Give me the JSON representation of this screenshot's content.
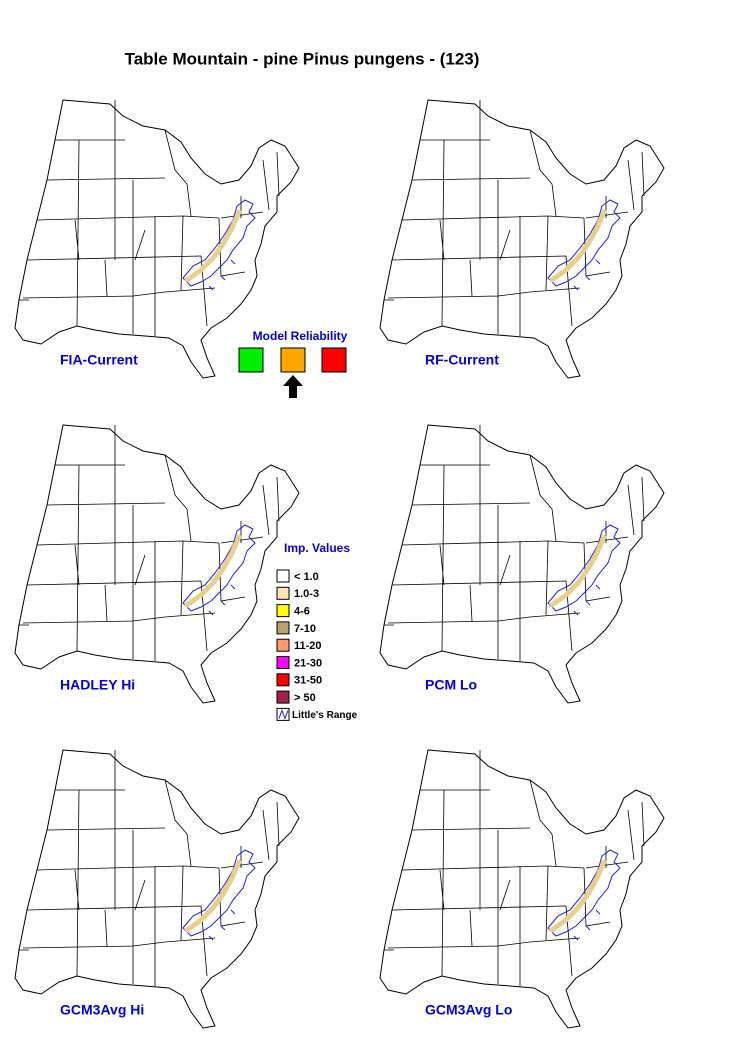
{
  "title": "Table Mountain - pine Pinus pungens - (123)",
  "maps": [
    {
      "label": "FIA-Current"
    },
    {
      "label": "RF-Current"
    },
    {
      "label": "HADLEY Hi"
    },
    {
      "label": "PCM Lo"
    },
    {
      "label": "GCM3Avg Hi"
    },
    {
      "label": "GCM3Avg Lo"
    }
  ],
  "model_reliability": {
    "title": "Model Reliability"
  },
  "imp_values": {
    "title": "Imp. Values",
    "items": [
      {
        "label": "< 1.0",
        "color": "#ffffff"
      },
      {
        "label": "1.0-3",
        "color": "#ffe4b5"
      },
      {
        "label": "4-6",
        "color": "#ffff00"
      },
      {
        "label": "7-10",
        "color": "#b8a46a"
      },
      {
        "label": "11-20",
        "color": "#ff9966"
      },
      {
        "label": "21-30",
        "color": "#ff00ff"
      },
      {
        "label": "31-50",
        "color": "#ff0000"
      },
      {
        "label": "> 50",
        "color": "#a0204e"
      }
    ]
  },
  "littles_range": "Little's Range"
}
